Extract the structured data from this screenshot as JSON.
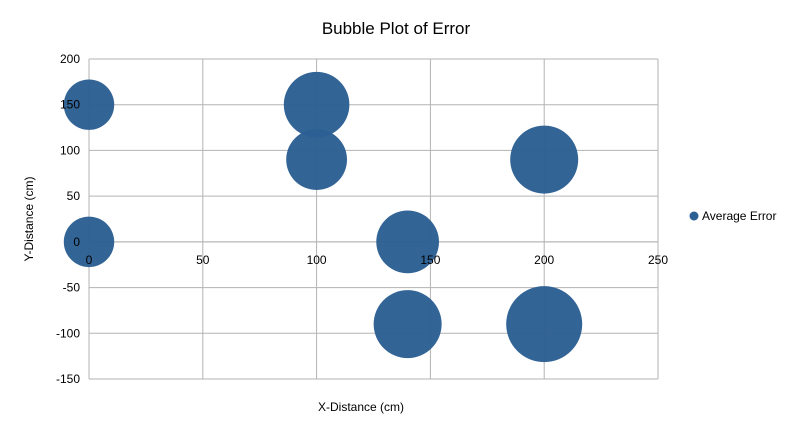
{
  "chart_data": {
    "type": "bubble",
    "title": "Bubble Plot of Error",
    "xlabel": "X-Distance (cm)",
    "ylabel": "Y-Distance (cm)",
    "xlim": [
      0,
      250
    ],
    "ylim": [
      -150,
      200
    ],
    "xticks": [
      0,
      50,
      100,
      150,
      200,
      250
    ],
    "yticks": [
      -150,
      -100,
      -50,
      0,
      50,
      100,
      150,
      200
    ],
    "grid": true,
    "legend_position": "right",
    "color": "#2c5f93",
    "series": [
      {
        "name": "Average Error",
        "points": [
          {
            "x": 0,
            "y": 150,
            "size": 0.55
          },
          {
            "x": 100,
            "y": 150,
            "size": 0.93
          },
          {
            "x": 100,
            "y": 90,
            "size": 0.8
          },
          {
            "x": 200,
            "y": 90,
            "size": 1.0
          },
          {
            "x": 0,
            "y": 0,
            "size": 0.55
          },
          {
            "x": 140,
            "y": 0,
            "size": 0.85
          },
          {
            "x": 140,
            "y": -90,
            "size": 1.0
          },
          {
            "x": 200,
            "y": -90,
            "size": 1.25
          }
        ]
      }
    ]
  }
}
